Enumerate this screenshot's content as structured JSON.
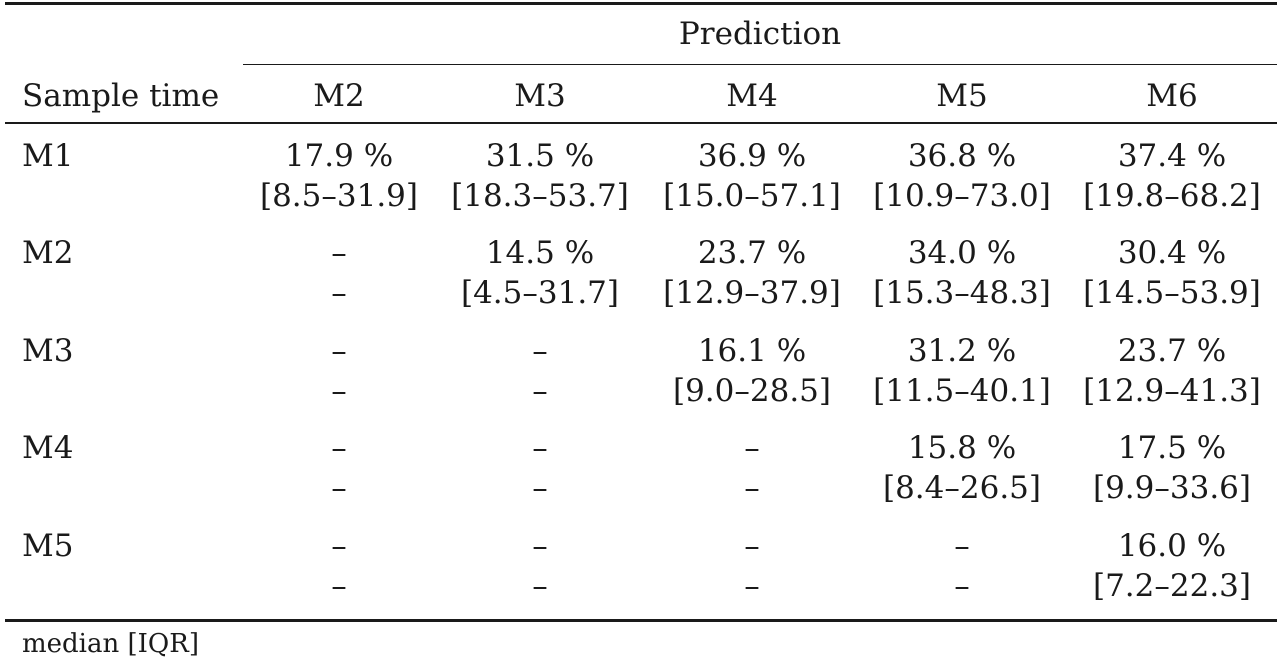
{
  "header": {
    "group_label": "Prediction",
    "row_header": "Sample time",
    "columns": [
      "M2",
      "M3",
      "M4",
      "M5",
      "M6"
    ]
  },
  "rows": [
    {
      "label": "M1",
      "cells": [
        {
          "median": "17.9 %",
          "iqr": "[8.5–31.9]"
        },
        {
          "median": "31.5 %",
          "iqr": "[18.3–53.7]"
        },
        {
          "median": "36.9 %",
          "iqr": "[15.0–57.1]"
        },
        {
          "median": "36.8 %",
          "iqr": "[10.9–73.0]"
        },
        {
          "median": "37.4 %",
          "iqr": "[19.8–68.2]"
        }
      ]
    },
    {
      "label": "M2",
      "cells": [
        {
          "median": "–",
          "iqr": "–"
        },
        {
          "median": "14.5 %",
          "iqr": "[4.5–31.7]"
        },
        {
          "median": "23.7 %",
          "iqr": "[12.9–37.9]"
        },
        {
          "median": "34.0 %",
          "iqr": "[15.3–48.3]"
        },
        {
          "median": "30.4 %",
          "iqr": "[14.5–53.9]"
        }
      ]
    },
    {
      "label": "M3",
      "cells": [
        {
          "median": "–",
          "iqr": "–"
        },
        {
          "median": "–",
          "iqr": "–"
        },
        {
          "median": "16.1 %",
          "iqr": "[9.0–28.5]"
        },
        {
          "median": "31.2 %",
          "iqr": "[11.5–40.1]"
        },
        {
          "median": "23.7 %",
          "iqr": "[12.9–41.3]"
        }
      ]
    },
    {
      "label": "M4",
      "cells": [
        {
          "median": "–",
          "iqr": "–"
        },
        {
          "median": "–",
          "iqr": "–"
        },
        {
          "median": "–",
          "iqr": "–"
        },
        {
          "median": "15.8 %",
          "iqr": "[8.4–26.5]"
        },
        {
          "median": "17.5 %",
          "iqr": "[9.9–33.6]"
        }
      ]
    },
    {
      "label": "M5",
      "cells": [
        {
          "median": "–",
          "iqr": "–"
        },
        {
          "median": "–",
          "iqr": "–"
        },
        {
          "median": "–",
          "iqr": "–"
        },
        {
          "median": "–",
          "iqr": "–"
        },
        {
          "median": "16.0 %",
          "iqr": "[7.2–22.3]"
        }
      ]
    }
  ],
  "footnote": "median [IQR]"
}
